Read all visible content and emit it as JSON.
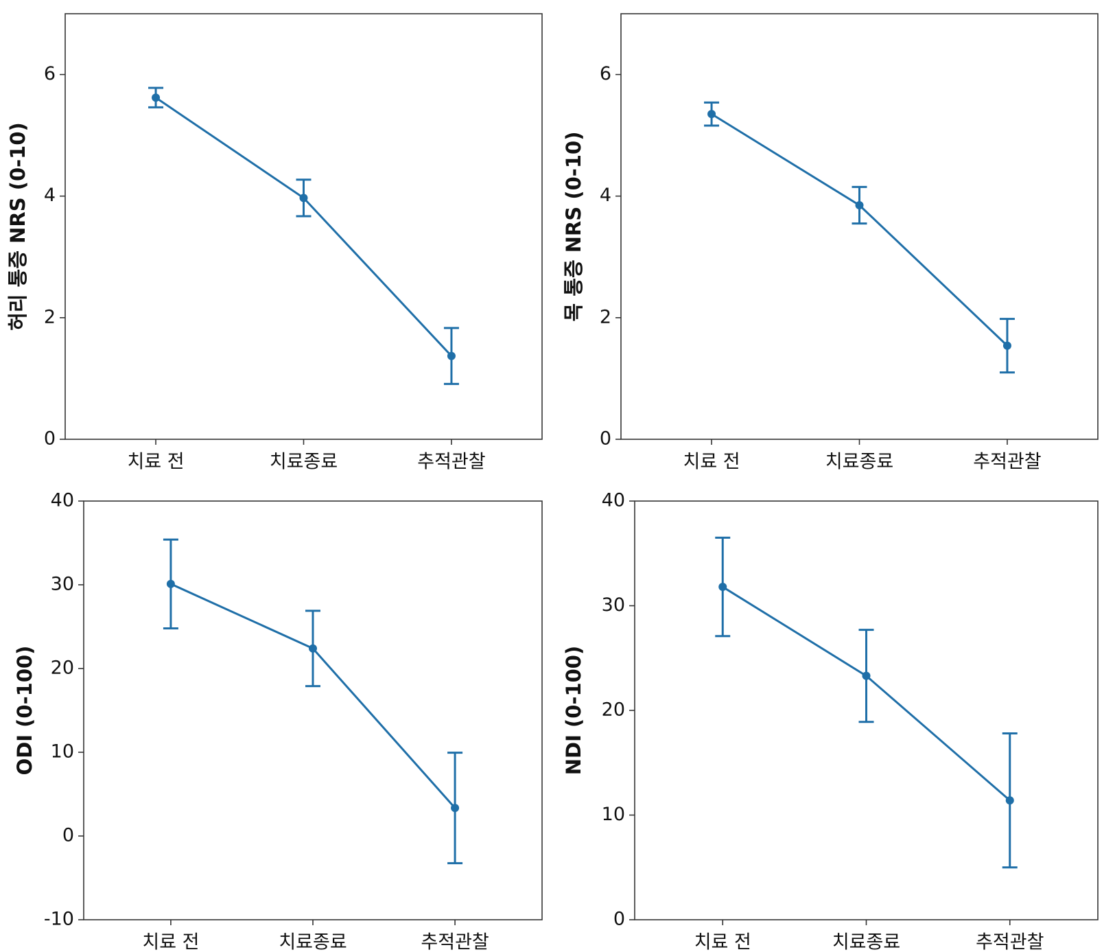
{
  "chart_data": [
    {
      "type": "line",
      "y_label": "허리 통증 NRS (0-10)",
      "categories": [
        "치료 전",
        "치료종료",
        "추적관찰"
      ],
      "values": [
        5.62,
        3.97,
        1.37
      ],
      "errors": [
        0.16,
        0.3,
        0.46
      ],
      "color": "#1f6fa8",
      "ylim": [
        0,
        7
      ],
      "yticks": [
        0,
        2,
        4,
        6
      ]
    },
    {
      "type": "line",
      "y_label": "목 통증 NRS (0-10)",
      "categories": [
        "치료 전",
        "치료종료",
        "추적관찰"
      ],
      "values": [
        5.35,
        3.85,
        1.54
      ],
      "errors": [
        0.19,
        0.3,
        0.44
      ],
      "color": "#1f6fa8",
      "ylim": [
        0,
        7
      ],
      "yticks": [
        0,
        2,
        4,
        6
      ]
    },
    {
      "type": "line",
      "y_label": "ODI (0-100)",
      "categories": [
        "치료 전",
        "치료종료",
        "추적관찰"
      ],
      "values": [
        30.1,
        22.4,
        3.35
      ],
      "errors": [
        5.3,
        4.5,
        6.6
      ],
      "color": "#1f6fa8",
      "ylim": [
        -10,
        40
      ],
      "yticks": [
        -10,
        0,
        10,
        20,
        30,
        40
      ]
    },
    {
      "type": "line",
      "y_label": "NDI (0-100)",
      "categories": [
        "치료 전",
        "치료종료",
        "추적관찰"
      ],
      "values": [
        31.8,
        23.3,
        11.4
      ],
      "errors": [
        4.7,
        4.4,
        6.4
      ],
      "color": "#1f6fa8",
      "ylim": [
        0,
        40
      ],
      "yticks": [
        0,
        10,
        20,
        30,
        40
      ]
    }
  ]
}
